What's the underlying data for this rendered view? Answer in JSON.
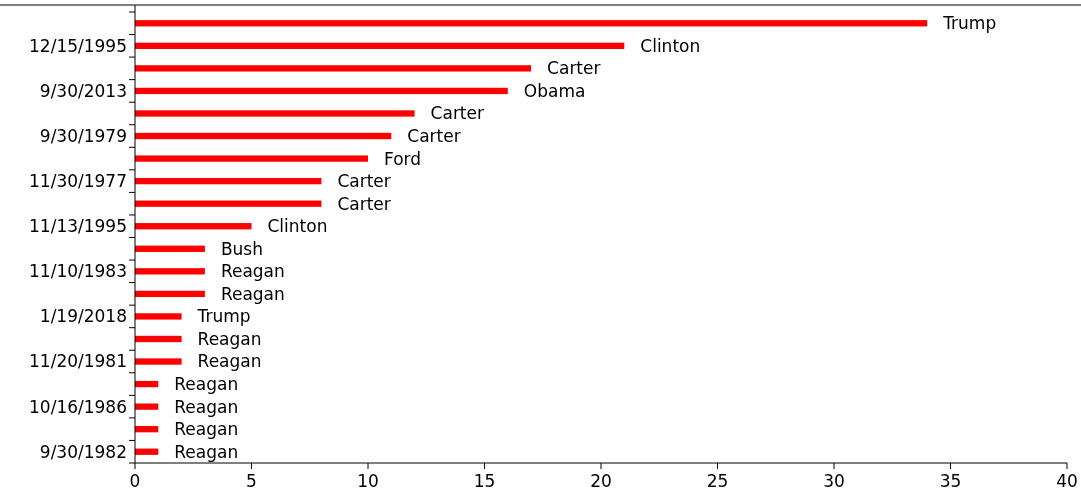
{
  "chart_data": {
    "type": "bar",
    "orientation": "horizontal",
    "categories": [
      null,
      "12/15/1995",
      null,
      "9/30/2013",
      null,
      "9/30/1979",
      null,
      "11/30/1977",
      null,
      "11/13/1995",
      null,
      "11/10/1983",
      null,
      "1/19/2018",
      null,
      "11/20/1981",
      null,
      "10/16/1986",
      null,
      "9/30/1982"
    ],
    "values": [
      34,
      21,
      17,
      16,
      12,
      11,
      10,
      8,
      8,
      5,
      3,
      3,
      3,
      2,
      2,
      2,
      1,
      1,
      1,
      1
    ],
    "color": "#ff0000",
    "xlim": [
      0,
      40
    ],
    "xticks": [
      0,
      5,
      10,
      15,
      20,
      25,
      30,
      35,
      40
    ],
    "grid": false,
    "annotations": [
      {
        "text": "Trump",
        "x": 34
      },
      {
        "text": "Clinton",
        "x": 21,
        "y": "12/15/1995"
      },
      {
        "text": "Carter",
        "x": 17
      },
      {
        "text": "Obama",
        "x": 16,
        "y": "9/30/2013"
      },
      {
        "text": "Carter",
        "x": 12
      },
      {
        "text": "Carter",
        "x": 11,
        "y": "9/30/1979"
      },
      {
        "text": "Ford",
        "x": 10
      },
      {
        "text": "Carter",
        "x": 8,
        "y": "11/30/1977"
      },
      {
        "text": "Carter",
        "x": 8
      },
      {
        "text": "Clinton",
        "x": 5,
        "y": "11/13/1995"
      },
      {
        "text": "Bush",
        "x": 3
      },
      {
        "text": "Reagan",
        "x": 3,
        "y": "11/10/1983"
      },
      {
        "text": "Reagan",
        "x": 3
      },
      {
        "text": "Trump",
        "x": 2,
        "y": "1/19/2018"
      },
      {
        "text": "Reagan",
        "x": 2
      },
      {
        "text": "Reagan",
        "x": 2,
        "y": "11/20/1981"
      },
      {
        "text": "Reagan",
        "x": 1
      },
      {
        "text": "Reagan",
        "x": 1,
        "y": "10/16/1986"
      },
      {
        "text": "Reagan",
        "x": 1
      },
      {
        "text": "Reagan",
        "x": 1,
        "y": "9/30/1982"
      }
    ]
  }
}
